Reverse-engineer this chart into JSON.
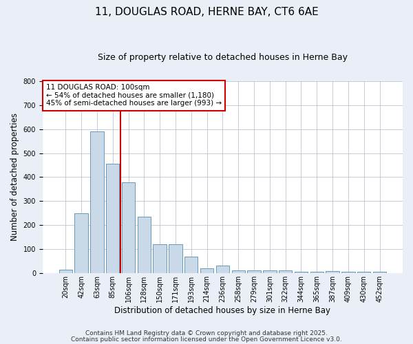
{
  "title1": "11, DOUGLAS ROAD, HERNE BAY, CT6 6AE",
  "title2": "Size of property relative to detached houses in Herne Bay",
  "xlabel": "Distribution of detached houses by size in Herne Bay",
  "ylabel": "Number of detached properties",
  "categories": [
    "20sqm",
    "42sqm",
    "63sqm",
    "85sqm",
    "106sqm",
    "128sqm",
    "150sqm",
    "171sqm",
    "193sqm",
    "214sqm",
    "236sqm",
    "258sqm",
    "279sqm",
    "301sqm",
    "322sqm",
    "344sqm",
    "365sqm",
    "387sqm",
    "409sqm",
    "430sqm",
    "452sqm"
  ],
  "values": [
    15,
    250,
    590,
    457,
    378,
    235,
    120,
    120,
    68,
    20,
    30,
    12,
    12,
    10,
    10,
    5,
    5,
    8,
    5,
    5,
    5
  ],
  "bar_color": "#c9d9e8",
  "bar_edge_color": "#6699bb",
  "vline_color": "#cc0000",
  "annotation_text": "11 DOUGLAS ROAD: 100sqm\n← 54% of detached houses are smaller (1,180)\n45% of semi-detached houses are larger (993) →",
  "annotation_box_color": "#ffffff",
  "annotation_box_edge_color": "#cc0000",
  "annotation_fontsize": 7.5,
  "footer1": "Contains HM Land Registry data © Crown copyright and database right 2025.",
  "footer2": "Contains public sector information licensed under the Open Government Licence v3.0.",
  "bg_color": "#eaeff7",
  "plot_bg_color": "#ffffff",
  "ylim": [
    0,
    800
  ],
  "title1_fontsize": 11,
  "title2_fontsize": 9,
  "xlabel_fontsize": 8.5,
  "ylabel_fontsize": 8.5,
  "tick_fontsize": 7,
  "footer_fontsize": 6.5,
  "vline_pos": 3.5
}
